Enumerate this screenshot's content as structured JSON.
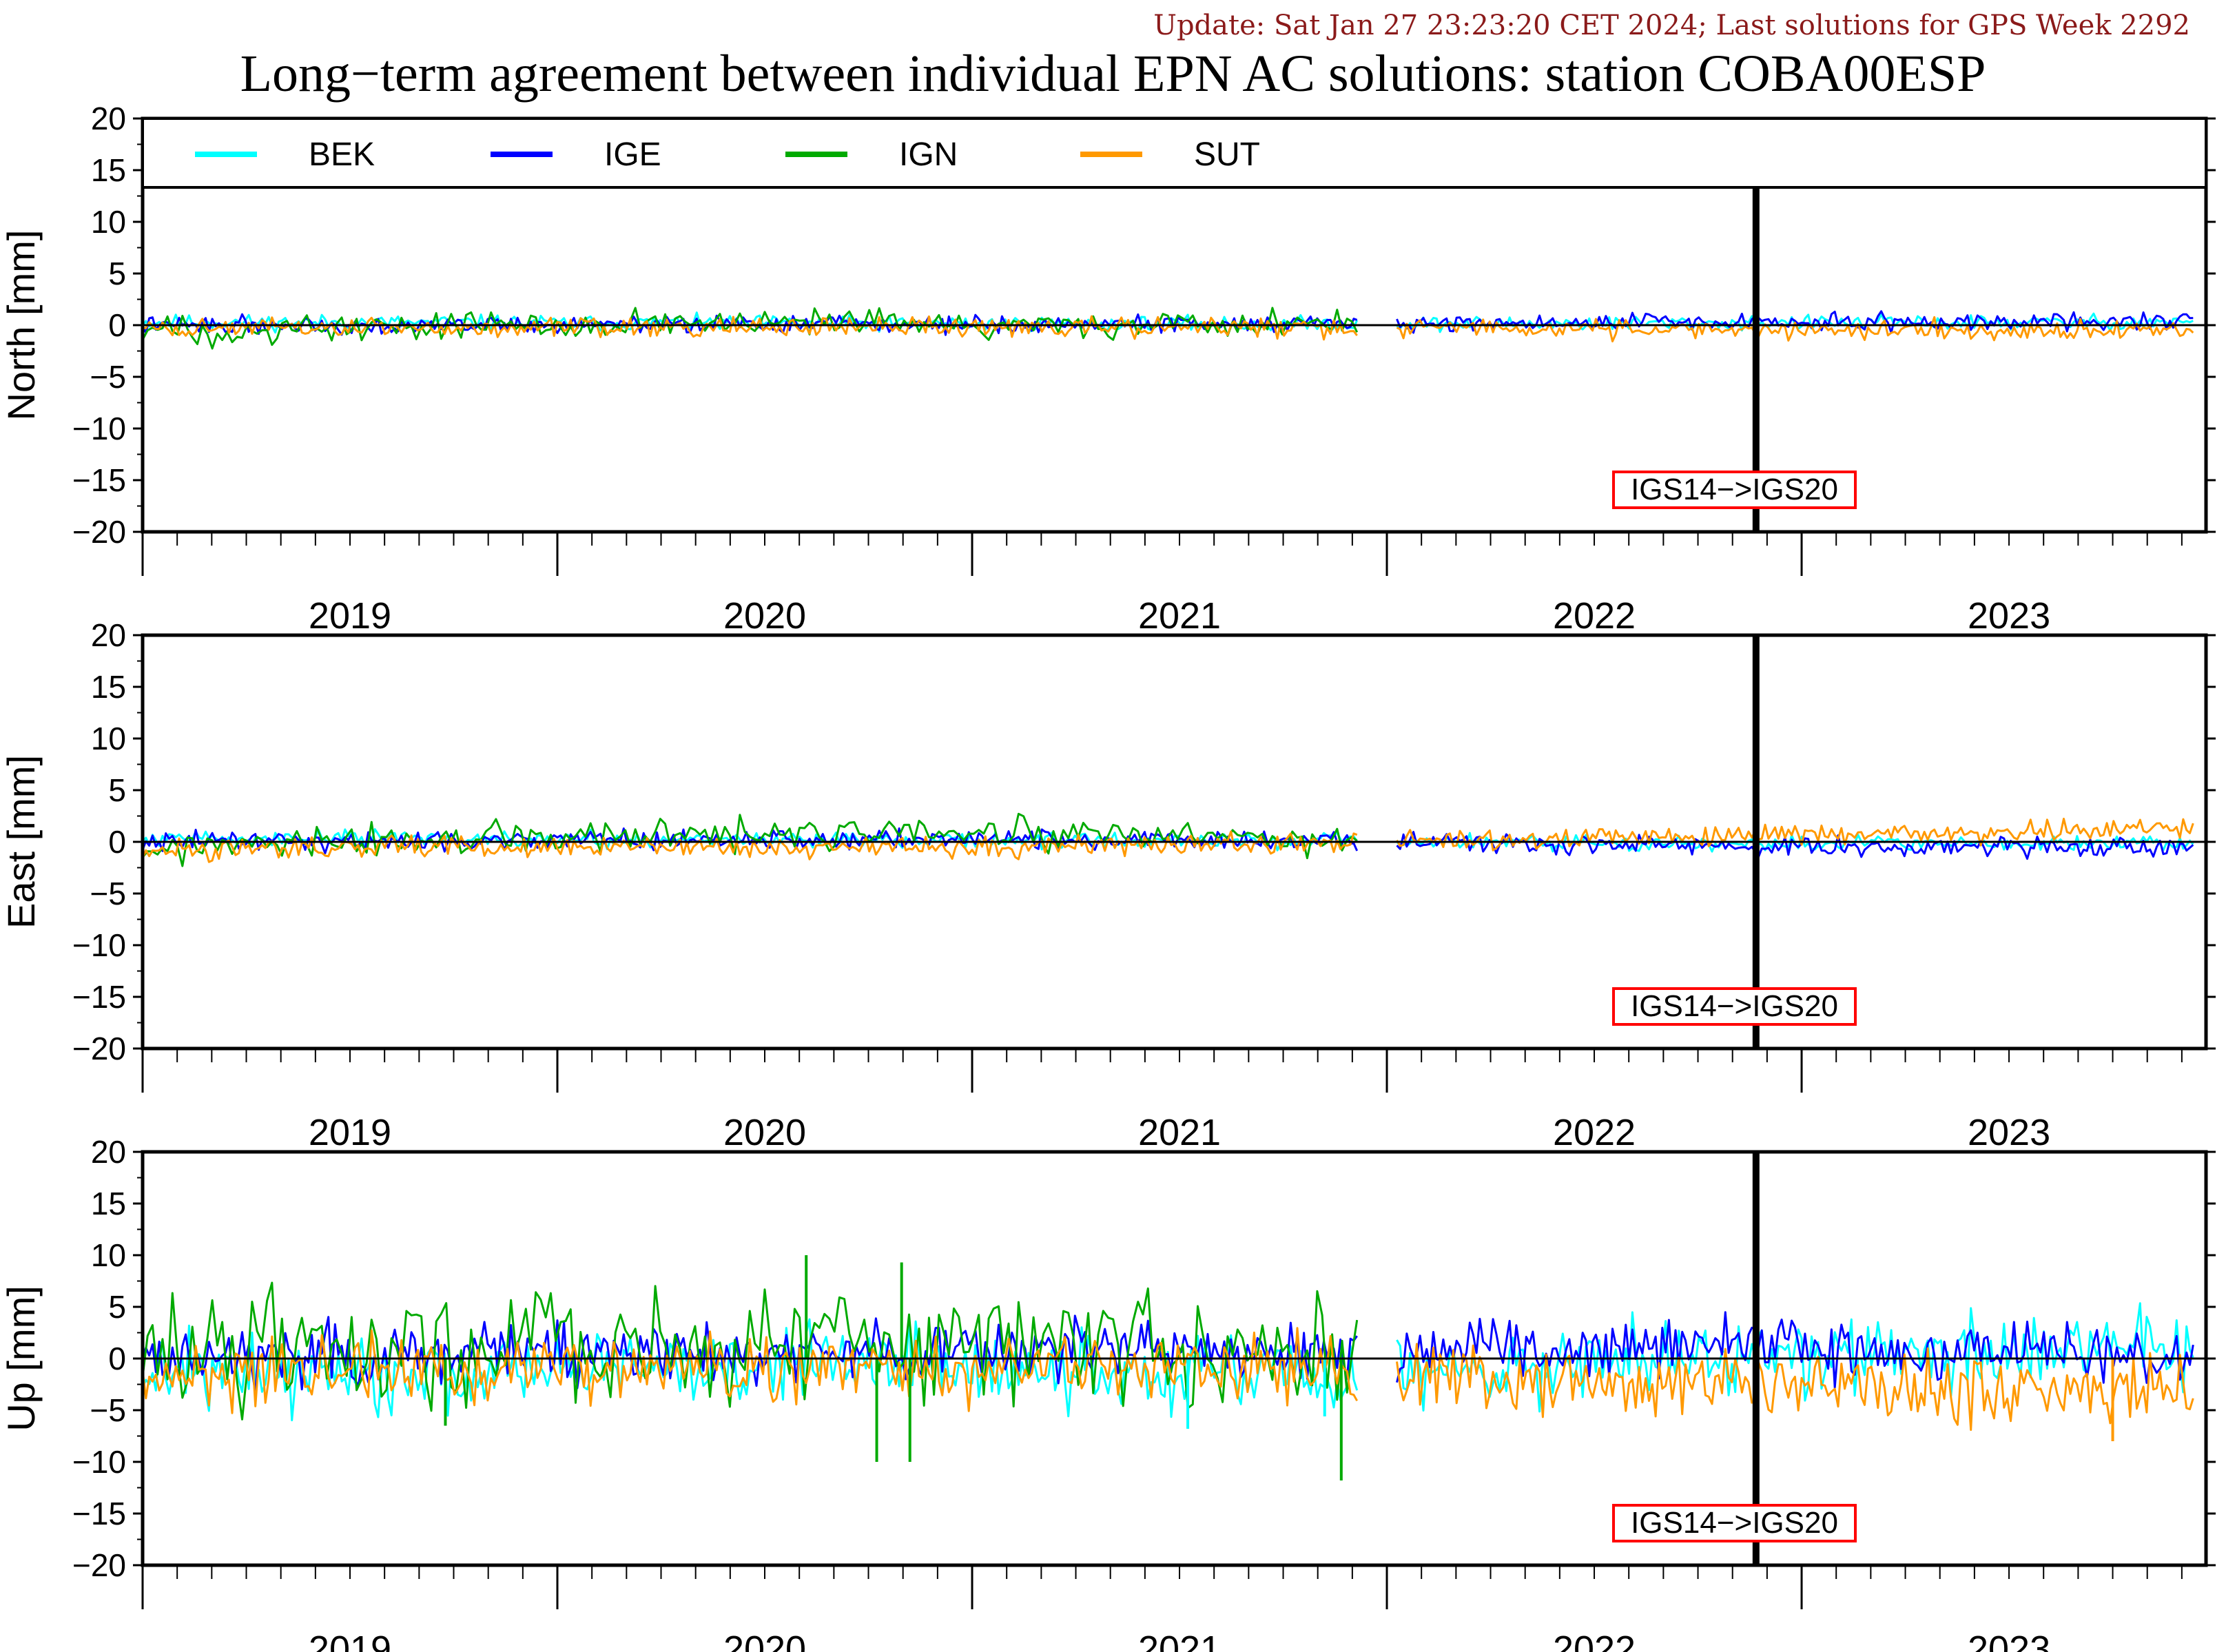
{
  "update_text": "Update: Sat Jan 27 23:23:20 CET 2024; Last solutions for GPS Week 2292",
  "title": "Long−term agreement between individual EPN AC solutions: station COBA00ESP",
  "colors": {
    "BEK": "#00ffff",
    "IGE": "#0000ff",
    "IGN": "#00aa00",
    "SUT": "#ff9900",
    "frame_change_box": "#ff0000"
  },
  "chart_data": [
    {
      "type": "line",
      "ylabel": "North [mm]",
      "ylim": [
        -20,
        20
      ],
      "yticks": [
        20,
        15,
        10,
        5,
        0,
        -5,
        -10,
        -15,
        -20
      ],
      "xlim": [
        2018.5,
        2023.475
      ],
      "year_labels": [
        "2019",
        "2020",
        "2021",
        "2022",
        "2023"
      ],
      "year_label_positions": [
        2019.0,
        2020.0,
        2021.0,
        2022.0,
        2023.0
      ],
      "legend": [
        "BEK",
        "IGE",
        "IGN",
        "SUT"
      ],
      "legend_position": "top",
      "reference_line": 0,
      "frame_change": {
        "x": 2022.39,
        "label": "IGS14−>IGS20"
      },
      "gap": [
        2021.43,
        2021.52
      ],
      "series": [
        {
          "name": "BEK",
          "start": 2018.5,
          "end": 2023.45,
          "offsets": [
            [
              2018.5,
              0.3
            ],
            [
              2021.0,
              0.1
            ],
            [
              2022.39,
              0.2
            ],
            [
              2023.45,
              0.3
            ]
          ],
          "amplitude": 0.8,
          "step": 0.008,
          "seed": 11
        },
        {
          "name": "IGE",
          "start": 2018.5,
          "end": 2023.45,
          "offsets": [
            [
              2018.5,
              0.0
            ],
            [
              2020.5,
              0.1
            ],
            [
              2022.39,
              0.3
            ],
            [
              2023.45,
              0.4
            ]
          ],
          "amplitude": 0.9,
          "step": 0.008,
          "seed": 22
        },
        {
          "name": "IGN",
          "start": 2018.5,
          "end": 2021.43,
          "offsets": [
            [
              2018.5,
              -0.6
            ],
            [
              2019.5,
              0.2
            ],
            [
              2020.5,
              0.0
            ],
            [
              2021.43,
              0.1
            ]
          ],
          "amplitude": 1.6,
          "step": 0.012,
          "seed": 33
        },
        {
          "name": "SUT",
          "start": 2018.5,
          "end": 2023.45,
          "offsets": [
            [
              2018.5,
              -0.3
            ],
            [
              2021.0,
              -0.2
            ],
            [
              2022.39,
              -0.4
            ],
            [
              2023.45,
              -0.5
            ]
          ],
          "amplitude": 1.0,
          "step": 0.008,
          "seed": 44
        }
      ]
    },
    {
      "type": "line",
      "ylabel": "East [mm]",
      "ylim": [
        -20,
        20
      ],
      "yticks": [
        20,
        15,
        10,
        5,
        0,
        -5,
        -10,
        -15,
        -20
      ],
      "xlim": [
        2018.5,
        2023.475
      ],
      "year_labels": [
        "2019",
        "2020",
        "2021",
        "2022",
        "2023"
      ],
      "year_label_positions": [
        2019.0,
        2020.0,
        2021.0,
        2022.0,
        2023.0
      ],
      "reference_line": 0,
      "frame_change": {
        "x": 2022.39,
        "label": "IGS14−>IGS20"
      },
      "gap": [
        2021.43,
        2021.52
      ],
      "series": [
        {
          "name": "BEK",
          "start": 2018.5,
          "end": 2023.45,
          "offsets": [
            [
              2018.5,
              0.4
            ],
            [
              2021.0,
              0.1
            ],
            [
              2022.39,
              -0.2
            ],
            [
              2023.45,
              -0.2
            ]
          ],
          "amplitude": 0.8,
          "step": 0.008,
          "seed": 55
        },
        {
          "name": "IGE",
          "start": 2018.5,
          "end": 2023.45,
          "offsets": [
            [
              2018.5,
              0.1
            ],
            [
              2021.0,
              0.3
            ],
            [
              2022.39,
              -0.5
            ],
            [
              2023.45,
              -0.4
            ]
          ],
          "amplitude": 1.0,
          "step": 0.008,
          "seed": 66
        },
        {
          "name": "IGN",
          "start": 2018.5,
          "end": 2021.43,
          "offsets": [
            [
              2018.5,
              -0.8
            ],
            [
              2019.3,
              0.3
            ],
            [
              2020.3,
              0.8
            ],
            [
              2021.43,
              0.2
            ]
          ],
          "amplitude": 1.8,
          "step": 0.012,
          "seed": 77
        },
        {
          "name": "SUT",
          "start": 2018.5,
          "end": 2023.45,
          "offsets": [
            [
              2018.5,
              -0.7
            ],
            [
              2021.0,
              -0.4
            ],
            [
              2022.39,
              0.6
            ],
            [
              2023.45,
              1.3
            ]
          ],
          "amplitude": 1.1,
          "step": 0.008,
          "seed": 88
        }
      ]
    },
    {
      "type": "line",
      "ylabel": "Up [mm]",
      "ylim": [
        -20,
        20
      ],
      "yticks": [
        20,
        15,
        10,
        5,
        0,
        -5,
        -10,
        -15,
        -20
      ],
      "xlim": [
        2018.5,
        2023.475
      ],
      "year_labels": [
        "2019",
        "2020",
        "2021",
        "2022",
        "2023"
      ],
      "year_label_positions": [
        2019.0,
        2020.0,
        2021.0,
        2022.0,
        2023.0
      ],
      "reference_line": 0,
      "frame_change": {
        "x": 2022.39,
        "label": "IGS14−>IGS20"
      },
      "gap": [
        2021.43,
        2021.52
      ],
      "series": [
        {
          "name": "BEK",
          "start": 2018.5,
          "end": 2023.45,
          "offsets": [
            [
              2018.5,
              -1.5
            ],
            [
              2020.3,
              -0.3
            ],
            [
              2021.0,
              -1.5
            ],
            [
              2021.4,
              -2.0
            ],
            [
              2022.39,
              0.5
            ],
            [
              2023.45,
              1.2
            ]
          ],
          "amplitude": 4.0,
          "step": 0.008,
          "seed": 99
        },
        {
          "name": "IGE",
          "start": 2018.5,
          "end": 2023.45,
          "offsets": [
            [
              2018.5,
              0.3
            ],
            [
              2020.3,
              0.8
            ],
            [
              2021.0,
              1.0
            ],
            [
              2022.39,
              1.2
            ],
            [
              2023.45,
              0.3
            ]
          ],
          "amplitude": 3.2,
          "step": 0.008,
          "seed": 111
        },
        {
          "name": "IGN",
          "start": 2018.5,
          "end": 2021.43,
          "offsets": [
            [
              2018.5,
              1.0
            ],
            [
              2019.5,
              1.5
            ],
            [
              2020.3,
              2.0
            ],
            [
              2021.43,
              0.5
            ]
          ],
          "amplitude": 6.0,
          "step": 0.012,
          "seed": 122
        },
        {
          "name": "SUT",
          "start": 2018.5,
          "end": 2023.45,
          "offsets": [
            [
              2018.5,
              -1.2
            ],
            [
              2020.3,
              -0.8
            ],
            [
              2021.0,
              -1.0
            ],
            [
              2022.39,
              -2.5
            ],
            [
              2023.45,
              -3.0
            ]
          ],
          "amplitude": 3.6,
          "step": 0.008,
          "seed": 133
        }
      ],
      "spikes": [
        {
          "name": "IGN",
          "x": 2020.1,
          "y": 10.0
        },
        {
          "name": "IGN",
          "x": 2020.33,
          "y": 9.3
        },
        {
          "name": "IGN",
          "x": 2020.27,
          "y": -10.0
        },
        {
          "name": "IGN",
          "x": 2020.35,
          "y": -10.0
        },
        {
          "name": "IGN",
          "x": 2021.39,
          "y": -11.8
        },
        {
          "name": "IGN",
          "x": 2019.23,
          "y": -6.5
        },
        {
          "name": "BEK",
          "x": 2021.02,
          "y": -6.8
        },
        {
          "name": "BEK",
          "x": 2021.35,
          "y": -5.6
        },
        {
          "name": "SUT",
          "x": 2023.25,
          "y": -8.0
        }
      ]
    }
  ]
}
